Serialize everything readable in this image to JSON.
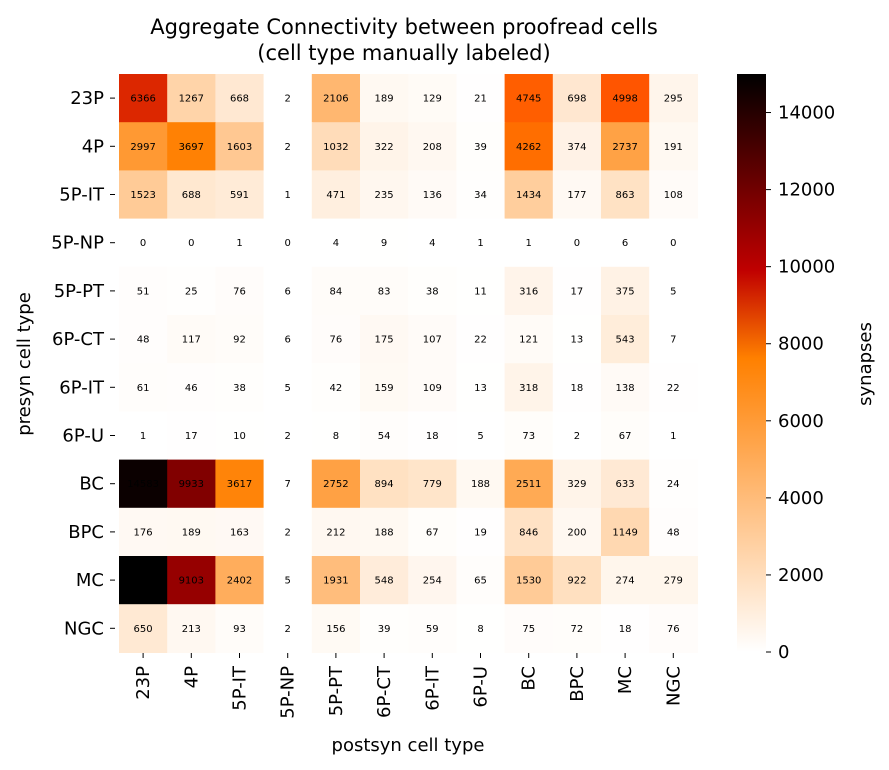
{
  "chart_data": {
    "type": "heatmap",
    "title": "Aggregate Connectivity between proofread cells",
    "subtitle": "(cell type manually labeled)",
    "xlabel": "postsyn cell type",
    "ylabel": "presyn cell type",
    "x_categories": [
      "23P",
      "4P",
      "5P-IT",
      "5P-NP",
      "5P-PT",
      "6P-CT",
      "6P-IT",
      "6P-U",
      "BC",
      "BPC",
      "MC",
      "NGC"
    ],
    "y_categories": [
      "23P",
      "4P",
      "5P-IT",
      "5P-NP",
      "5P-PT",
      "6P-CT",
      "6P-IT",
      "6P-U",
      "BC",
      "BPC",
      "MC",
      "NGC"
    ],
    "values": [
      [
        6366,
        1267,
        668,
        2,
        2106,
        189,
        129,
        21,
        4745,
        698,
        4998,
        295
      ],
      [
        2997,
        3697,
        1603,
        2,
        1032,
        322,
        208,
        39,
        4262,
        374,
        2737,
        191
      ],
      [
        1523,
        688,
        591,
        1,
        471,
        235,
        136,
        34,
        1434,
        177,
        863,
        108
      ],
      [
        0,
        0,
        1,
        0,
        4,
        9,
        4,
        1,
        1,
        0,
        6,
        0
      ],
      [
        51,
        25,
        76,
        6,
        84,
        83,
        38,
        11,
        316,
        17,
        375,
        5
      ],
      [
        48,
        117,
        92,
        6,
        76,
        175,
        107,
        22,
        121,
        13,
        543,
        7
      ],
      [
        61,
        46,
        38,
        5,
        42,
        159,
        109,
        13,
        318,
        18,
        138,
        22
      ],
      [
        1,
        17,
        10,
        2,
        8,
        54,
        18,
        5,
        73,
        2,
        67,
        1
      ],
      [
        14583,
        9933,
        3617,
        7,
        2752,
        894,
        779,
        188,
        2511,
        329,
        633,
        24
      ],
      [
        176,
        189,
        163,
        2,
        212,
        188,
        67,
        19,
        846,
        200,
        1149,
        48
      ],
      [
        16046,
        9103,
        2402,
        5,
        1931,
        548,
        254,
        65,
        1530,
        922,
        274,
        279
      ],
      [
        650,
        213,
        93,
        2,
        156,
        39,
        59,
        8,
        75,
        72,
        18,
        76
      ]
    ],
    "colorbar": {
      "label": "synapses",
      "range": [
        0,
        15000
      ],
      "ticks": [
        0,
        2000,
        4000,
        6000,
        8000,
        10000,
        12000,
        14000
      ],
      "colormap": "gist_heat_r"
    }
  }
}
